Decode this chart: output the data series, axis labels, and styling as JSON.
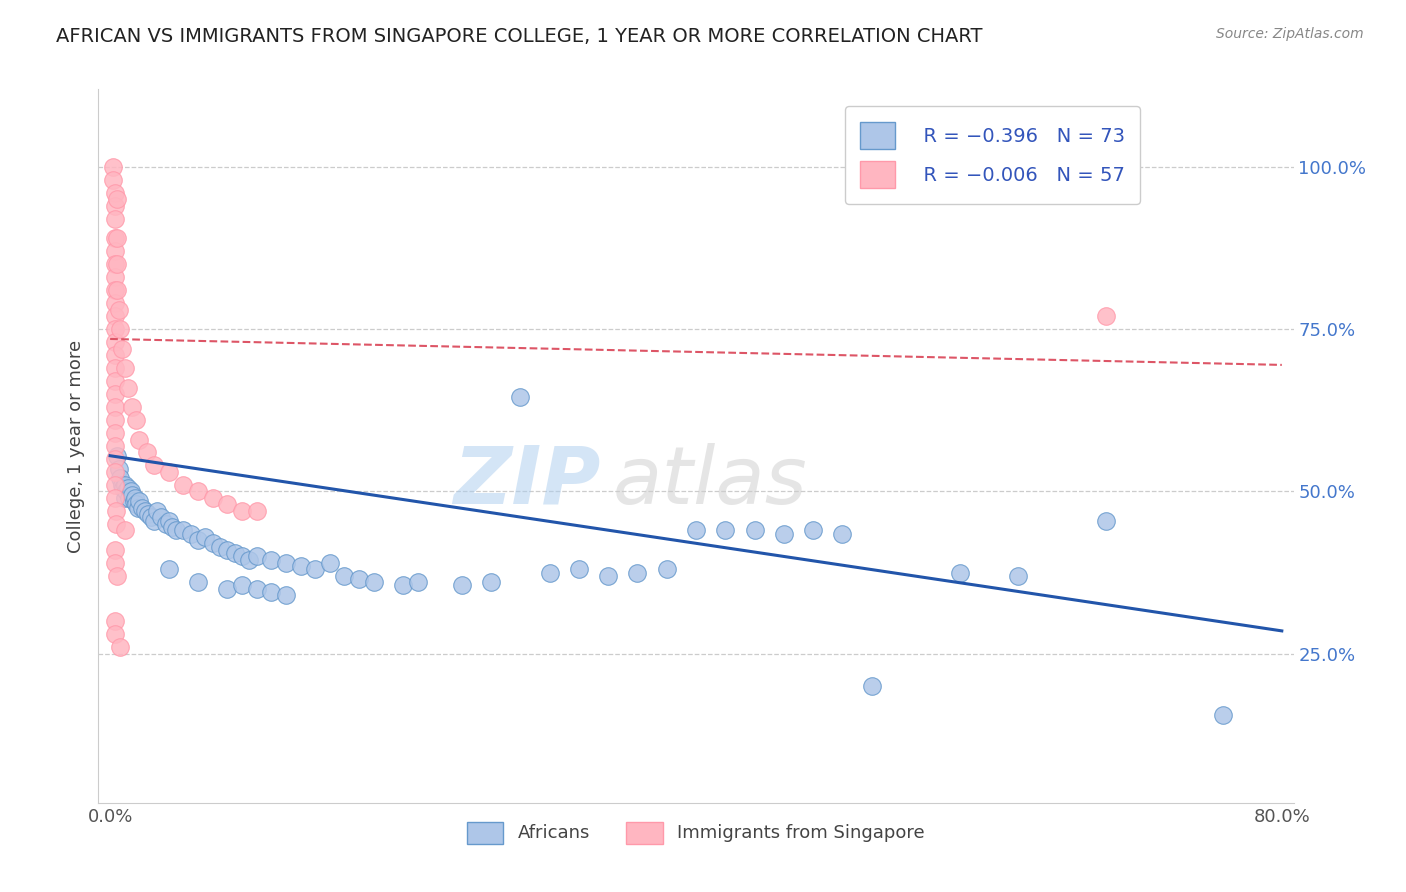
{
  "title": "AFRICAN VS IMMIGRANTS FROM SINGAPORE COLLEGE, 1 YEAR OR MORE CORRELATION CHART",
  "source": "Source: ZipAtlas.com",
  "ylabel": "College, 1 year or more",
  "ytick_labels": [
    "25.0%",
    "50.0%",
    "75.0%",
    "100.0%"
  ],
  "ytick_values": [
    0.25,
    0.5,
    0.75,
    1.0
  ],
  "xlim": [
    -0.008,
    0.808
  ],
  "ylim": [
    0.02,
    1.12
  ],
  "legend_r1": "R = −0.396",
  "legend_n1": "N = 73",
  "legend_r2": "R = −0.006",
  "legend_n2": "N = 57",
  "color_blue": "#6699CC",
  "color_pink": "#FF99AA",
  "color_blue_light": "#AEC6E8",
  "color_pink_light": "#FFB6C1",
  "color_trendline_blue": "#2255AA",
  "color_trendline_pink": "#DD5566",
  "watermark_zip": "ZIP",
  "watermark_atlas": "atlas",
  "blue_points": [
    [
      0.005,
      0.555
    ],
    [
      0.006,
      0.535
    ],
    [
      0.007,
      0.52
    ],
    [
      0.008,
      0.51
    ],
    [
      0.009,
      0.505
    ],
    [
      0.01,
      0.51
    ],
    [
      0.01,
      0.49
    ],
    [
      0.011,
      0.5
    ],
    [
      0.012,
      0.505
    ],
    [
      0.013,
      0.49
    ],
    [
      0.014,
      0.5
    ],
    [
      0.015,
      0.495
    ],
    [
      0.016,
      0.485
    ],
    [
      0.017,
      0.49
    ],
    [
      0.018,
      0.48
    ],
    [
      0.019,
      0.475
    ],
    [
      0.02,
      0.485
    ],
    [
      0.022,
      0.475
    ],
    [
      0.024,
      0.47
    ],
    [
      0.026,
      0.465
    ],
    [
      0.028,
      0.46
    ],
    [
      0.03,
      0.455
    ],
    [
      0.032,
      0.47
    ],
    [
      0.035,
      0.46
    ],
    [
      0.038,
      0.45
    ],
    [
      0.04,
      0.455
    ],
    [
      0.042,
      0.445
    ],
    [
      0.045,
      0.44
    ],
    [
      0.05,
      0.44
    ],
    [
      0.055,
      0.435
    ],
    [
      0.06,
      0.425
    ],
    [
      0.065,
      0.43
    ],
    [
      0.07,
      0.42
    ],
    [
      0.075,
      0.415
    ],
    [
      0.08,
      0.41
    ],
    [
      0.085,
      0.405
    ],
    [
      0.09,
      0.4
    ],
    [
      0.095,
      0.395
    ],
    [
      0.1,
      0.4
    ],
    [
      0.11,
      0.395
    ],
    [
      0.12,
      0.39
    ],
    [
      0.13,
      0.385
    ],
    [
      0.14,
      0.38
    ],
    [
      0.15,
      0.39
    ],
    [
      0.16,
      0.37
    ],
    [
      0.17,
      0.365
    ],
    [
      0.18,
      0.36
    ],
    [
      0.2,
      0.355
    ],
    [
      0.21,
      0.36
    ],
    [
      0.04,
      0.38
    ],
    [
      0.06,
      0.36
    ],
    [
      0.08,
      0.35
    ],
    [
      0.09,
      0.355
    ],
    [
      0.1,
      0.35
    ],
    [
      0.11,
      0.345
    ],
    [
      0.12,
      0.34
    ],
    [
      0.24,
      0.355
    ],
    [
      0.26,
      0.36
    ],
    [
      0.28,
      0.645
    ],
    [
      0.3,
      0.375
    ],
    [
      0.32,
      0.38
    ],
    [
      0.34,
      0.37
    ],
    [
      0.36,
      0.375
    ],
    [
      0.38,
      0.38
    ],
    [
      0.4,
      0.44
    ],
    [
      0.42,
      0.44
    ],
    [
      0.44,
      0.44
    ],
    [
      0.46,
      0.435
    ],
    [
      0.48,
      0.44
    ],
    [
      0.5,
      0.435
    ],
    [
      0.68,
      0.455
    ],
    [
      0.58,
      0.375
    ],
    [
      0.62,
      0.37
    ],
    [
      0.52,
      0.2
    ],
    [
      0.76,
      0.155
    ]
  ],
  "pink_points": [
    [
      0.002,
      1.0
    ],
    [
      0.002,
      0.98
    ],
    [
      0.003,
      0.96
    ],
    [
      0.003,
      0.94
    ],
    [
      0.003,
      0.92
    ],
    [
      0.003,
      0.89
    ],
    [
      0.003,
      0.87
    ],
    [
      0.003,
      0.85
    ],
    [
      0.003,
      0.83
    ],
    [
      0.003,
      0.81
    ],
    [
      0.003,
      0.79
    ],
    [
      0.003,
      0.77
    ],
    [
      0.003,
      0.75
    ],
    [
      0.003,
      0.73
    ],
    [
      0.003,
      0.71
    ],
    [
      0.003,
      0.69
    ],
    [
      0.003,
      0.67
    ],
    [
      0.003,
      0.65
    ],
    [
      0.003,
      0.63
    ],
    [
      0.003,
      0.61
    ],
    [
      0.003,
      0.59
    ],
    [
      0.003,
      0.57
    ],
    [
      0.003,
      0.55
    ],
    [
      0.003,
      0.53
    ],
    [
      0.003,
      0.51
    ],
    [
      0.003,
      0.49
    ],
    [
      0.004,
      0.47
    ],
    [
      0.004,
      0.45
    ],
    [
      0.005,
      0.95
    ],
    [
      0.005,
      0.89
    ],
    [
      0.005,
      0.85
    ],
    [
      0.005,
      0.81
    ],
    [
      0.006,
      0.78
    ],
    [
      0.007,
      0.75
    ],
    [
      0.008,
      0.72
    ],
    [
      0.01,
      0.69
    ],
    [
      0.012,
      0.66
    ],
    [
      0.015,
      0.63
    ],
    [
      0.018,
      0.61
    ],
    [
      0.02,
      0.58
    ],
    [
      0.025,
      0.56
    ],
    [
      0.03,
      0.54
    ],
    [
      0.04,
      0.53
    ],
    [
      0.05,
      0.51
    ],
    [
      0.06,
      0.5
    ],
    [
      0.07,
      0.49
    ],
    [
      0.08,
      0.48
    ],
    [
      0.09,
      0.47
    ],
    [
      0.1,
      0.47
    ],
    [
      0.01,
      0.44
    ],
    [
      0.003,
      0.41
    ],
    [
      0.003,
      0.39
    ],
    [
      0.005,
      0.37
    ],
    [
      0.003,
      0.3
    ],
    [
      0.003,
      0.28
    ],
    [
      0.007,
      0.26
    ],
    [
      0.68,
      0.77
    ]
  ],
  "blue_trendline": [
    [
      0.0,
      0.555
    ],
    [
      0.8,
      0.285
    ]
  ],
  "pink_trendline": [
    [
      0.0,
      0.735
    ],
    [
      0.8,
      0.695
    ]
  ],
  "grid_color": "#CCCCCC",
  "background_color": "#FFFFFF",
  "title_color": "#222222",
  "axis_label_color": "#444444"
}
